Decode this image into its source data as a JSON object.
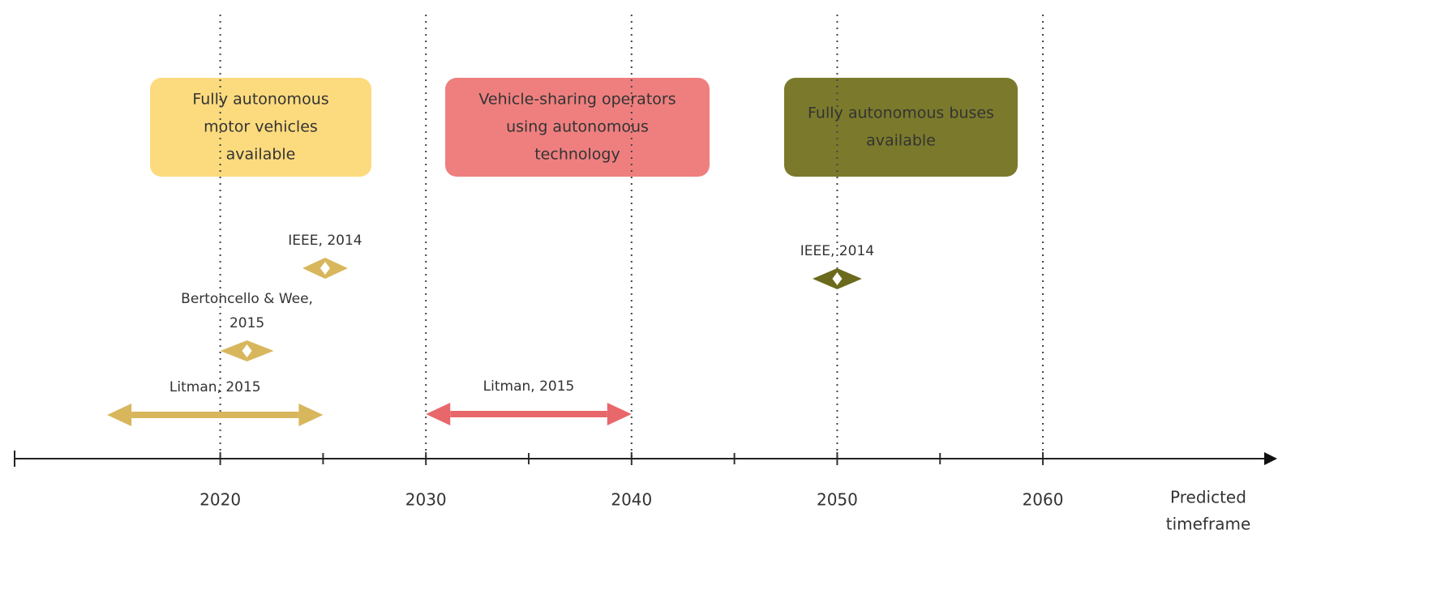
{
  "axis": {
    "xlim": [
      2010,
      2071
    ],
    "ticks": [
      2020,
      2030,
      2040,
      2050,
      2060
    ],
    "minor_ticks": [
      2025,
      2035,
      2045,
      2055
    ],
    "label": [
      "Predicted",
      "timeframe"
    ]
  },
  "milestones": [
    {
      "text": [
        "Fully autonomous",
        "motor vehicles",
        "available"
      ],
      "color": "#fcdb7e"
    },
    {
      "text": [
        "Vehicle-sharing operators",
        "using autonomous",
        "technology"
      ],
      "color": "#ef7f7f"
    },
    {
      "text": [
        "Fully autonomous buses",
        "available"
      ],
      "color": "#7b7a2c"
    }
  ],
  "ranges": [
    {
      "label": [
        "IEEE, 2014"
      ],
      "start": 2024,
      "end": 2026.2,
      "color": "#d8b65c"
    },
    {
      "label": [
        "Bertoncello & Wee,",
        "2015"
      ],
      "start": 2020,
      "end": 2022.6,
      "color": "#d8b65c"
    },
    {
      "label": [
        "Litman, 2015"
      ],
      "start": 2014.5,
      "end": 2025,
      "color": "#d8b65c"
    },
    {
      "label": [
        "Litman, 2015"
      ],
      "start": 2030,
      "end": 2040,
      "color": "#e8676a"
    },
    {
      "label": [
        "IEEE, 2014"
      ],
      "start": 2048.8,
      "end": 2051.2,
      "color": "#6b6a1c"
    }
  ]
}
